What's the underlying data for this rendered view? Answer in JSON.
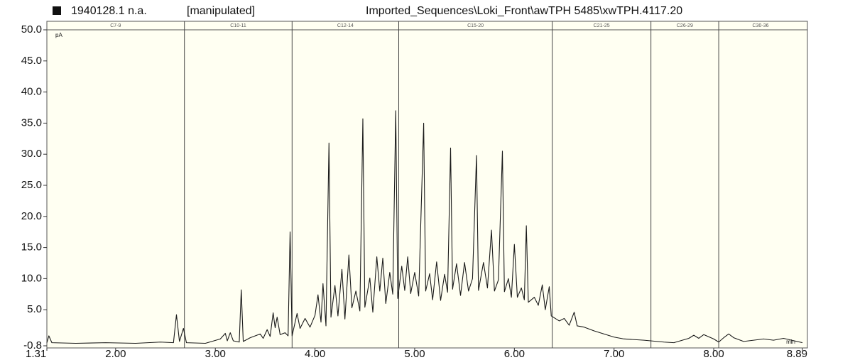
{
  "chart_data": {
    "type": "line",
    "title": "1940128.1 n.a.",
    "annotation": "[manipulated]",
    "subtitle": "Imported_Sequences\\Loki_Front\\awTPH 5485\\xwTPH.4117.20",
    "y_label": "pA",
    "x_label": "min",
    "color": "#1a1a1a",
    "region_labels": [
      "C7-9",
      "C10-11",
      "C12-14",
      "C15-20",
      "C21-25",
      "C26-29",
      "C30-36"
    ],
    "region_bounds": [
      1.31,
      2.69,
      3.77,
      4.84,
      6.38,
      7.37,
      8.05,
      8.89
    ],
    "xlim": [
      1.31,
      8.89
    ],
    "ylim": [
      -0.8,
      50.0
    ],
    "xticks": [
      1.31,
      {
        "value": 2,
        "label": "2.00"
      },
      {
        "value": 3,
        "label": "3.00"
      },
      {
        "value": 4,
        "label": "4.00"
      },
      {
        "value": 5,
        "label": "5.00"
      },
      {
        "value": 6,
        "label": "6.00"
      },
      {
        "value": 7,
        "label": "7.00"
      },
      {
        "value": 8,
        "label": "8.00"
      },
      8.89
    ],
    "yticks": [
      -0.8,
      {
        "value": 5,
        "label": "5.0"
      },
      {
        "value": 10,
        "label": "10.0"
      },
      {
        "value": 15,
        "label": "15.0"
      },
      {
        "value": 20,
        "label": "20.0"
      },
      {
        "value": 25,
        "label": "25.0"
      },
      {
        "value": 30,
        "label": "30.0"
      },
      {
        "value": 35,
        "label": "35.0"
      },
      {
        "value": 40,
        "label": "40.0"
      },
      {
        "value": 45,
        "label": "45.0"
      },
      {
        "value": 50,
        "label": "50.0"
      }
    ],
    "x": [
      1.31,
      1.33,
      1.36,
      1.6,
      1.9,
      2.2,
      2.45,
      2.58,
      2.61,
      2.64,
      2.68,
      2.71,
      2.9,
      3.05,
      3.1,
      3.12,
      3.15,
      3.18,
      3.24,
      3.26,
      3.28,
      3.35,
      3.45,
      3.48,
      3.52,
      3.55,
      3.58,
      3.6,
      3.62,
      3.65,
      3.7,
      3.73,
      3.75,
      3.77,
      3.82,
      3.85,
      3.9,
      3.95,
      4.0,
      4.03,
      4.06,
      4.08,
      4.11,
      4.14,
      4.16,
      4.2,
      4.23,
      4.27,
      4.3,
      4.34,
      4.37,
      4.41,
      4.45,
      4.48,
      4.5,
      4.55,
      4.58,
      4.62,
      4.65,
      4.68,
      4.71,
      4.75,
      4.78,
      4.81,
      4.83,
      4.87,
      4.9,
      4.93,
      4.96,
      5.0,
      5.04,
      5.09,
      5.11,
      5.15,
      5.18,
      5.22,
      5.26,
      5.3,
      5.33,
      5.36,
      5.38,
      5.42,
      5.46,
      5.5,
      5.54,
      5.58,
      5.62,
      5.64,
      5.69,
      5.73,
      5.77,
      5.8,
      5.84,
      5.88,
      5.9,
      5.94,
      5.97,
      6.0,
      6.03,
      6.07,
      6.1,
      6.12,
      6.14,
      6.2,
      6.24,
      6.28,
      6.31,
      6.35,
      6.37,
      6.45,
      6.5,
      6.55,
      6.6,
      6.63,
      6.7,
      6.8,
      6.9,
      7.0,
      7.1,
      7.3,
      7.5,
      7.6,
      7.75,
      7.8,
      7.85,
      7.9,
      8.0,
      8.05,
      8.1,
      8.15,
      8.2,
      8.3,
      8.5,
      8.6,
      8.7,
      8.89
    ],
    "values": [
      -0.3,
      0.8,
      -0.3,
      -0.4,
      -0.3,
      -0.4,
      -0.2,
      -0.3,
      4.2,
      -0.1,
      2.0,
      -0.3,
      -0.4,
      0.3,
      1.2,
      0,
      1.3,
      0,
      -0.2,
      8.2,
      -0.1,
      0.5,
      1.1,
      0.4,
      1.8,
      0.7,
      4.5,
      2.1,
      3.8,
      1.0,
      1.3,
      0.8,
      17.5,
      0.8,
      4.4,
      2.0,
      3.6,
      2.2,
      4.1,
      7.4,
      3.0,
      9.2,
      2.4,
      31.8,
      3.8,
      8.9,
      4.0,
      11.5,
      3.5,
      13.8,
      5.3,
      8.0,
      4.8,
      35.7,
      5.4,
      10.1,
      4.6,
      13.5,
      8.0,
      13.3,
      6.0,
      11.0,
      7.5,
      37.0,
      6.8,
      12.0,
      8.1,
      13.5,
      7.6,
      11.0,
      7.2,
      35.0,
      8.0,
      10.8,
      6.6,
      12.7,
      6.5,
      10.7,
      7.8,
      31.0,
      8.3,
      12.4,
      7.3,
      12.6,
      8.0,
      10.0,
      29.8,
      8.1,
      12.6,
      8.5,
      17.8,
      8.0,
      9.8,
      30.5,
      7.9,
      10.0,
      7.0,
      15.5,
      7.0,
      8.5,
      6.6,
      18.5,
      6.2,
      7.0,
      5.7,
      9.0,
      5.0,
      8.7,
      4.0,
      3.2,
      3.6,
      2.5,
      4.6,
      2.4,
      2.2,
      1.6,
      1.1,
      0.6,
      0.3,
      0.1,
      -0.2,
      -0.3,
      0.4,
      0.9,
      0.4,
      1.0,
      0.3,
      -0.2,
      0.5,
      1.1,
      0.5,
      -0.1,
      0.3,
      0.1,
      0.4,
      -0.3
    ]
  }
}
